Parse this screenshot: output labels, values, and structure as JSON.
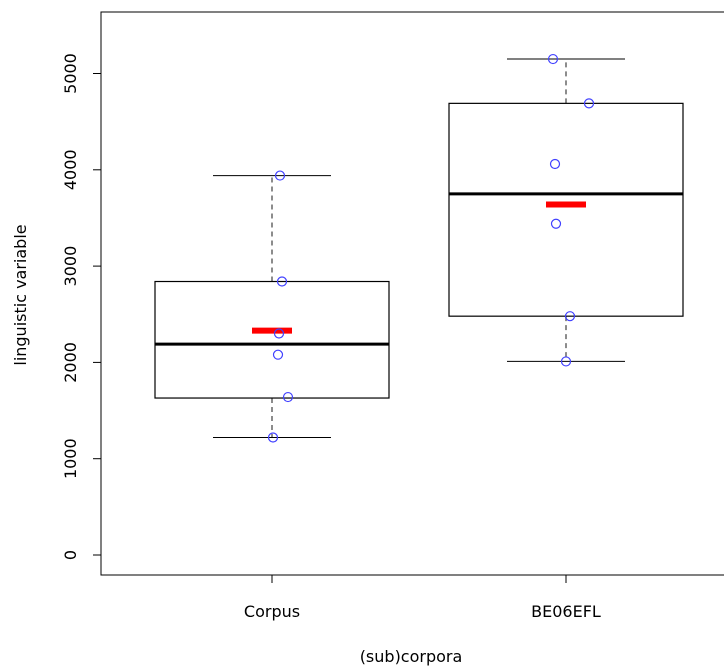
{
  "chart_data": {
    "type": "box",
    "xlabel": "(sub)corpora",
    "ylabel": "linguistic variable",
    "categories": [
      "Corpus",
      "BE06EFL"
    ],
    "ylim": [
      0,
      5400
    ],
    "yticks": [
      0,
      1000,
      2000,
      3000,
      4000,
      5000
    ],
    "ytick_labels": [
      "0",
      "1000",
      "2000",
      "3000",
      "4000",
      "5000"
    ],
    "boxes": [
      {
        "name": "Corpus",
        "whisker_low": 1220,
        "q1": 1630,
        "median": 2190,
        "q3": 2840,
        "whisker_high": 3940,
        "mean": 2330,
        "points": [
          1220,
          1640,
          2080,
          2300,
          2840,
          3940
        ]
      },
      {
        "name": "BE06EFL",
        "whisker_low": 2010,
        "q1": 2480,
        "median": 3750,
        "q3": 4690,
        "whisker_high": 5150,
        "mean": 3640,
        "points": [
          2010,
          2480,
          3440,
          4060,
          4690,
          5150
        ]
      }
    ],
    "colors": {
      "box": "#000000",
      "median": "#000000",
      "mean": "#ff0000",
      "points": "#4040ff",
      "whisker": "#666666"
    },
    "grid": false,
    "legend": "none"
  }
}
